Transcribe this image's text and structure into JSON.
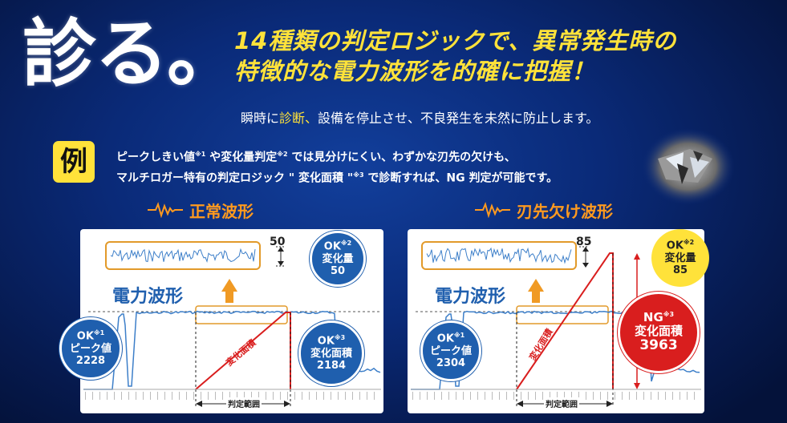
{
  "hero": {
    "title": "診る。"
  },
  "headline": {
    "line1": "14種類の判定ロジックで、異常発生時の",
    "line2": "特徴的な電力波形を的確に把握！"
  },
  "subline": {
    "pre": "瞬時に",
    "highlight": "診断、",
    "post": "設備を停止させ、不良発生を未然に防止します。"
  },
  "example": {
    "badge": "例",
    "line1_a": "ピークしきい値",
    "sup1": "※1",
    "line1_b": " や変化量判定",
    "sup2": "※2",
    "line1_c": " では見分けにくい、わずかな刃先の欠けも、",
    "line2_a": "マルチロガー特有の判定ロジック \" 変化面積 \"",
    "sup3": "※3",
    "line2_b": " で診断すれば、NG 判定が可能です。"
  },
  "normal": {
    "title": "正常波形",
    "zoom_value": "50",
    "waveform_label": "電力波形",
    "area_label": "変化面積",
    "range_label": "判定範囲",
    "ok1": {
      "status": "OK",
      "sup": "※1",
      "label": "ピーク値",
      "value": "2228"
    },
    "ok2": {
      "status": "OK",
      "sup": "※2",
      "label": "変化量",
      "value": "50"
    },
    "ok3": {
      "status": "OK",
      "sup": "※3",
      "label": "変化面積",
      "value": "2184"
    }
  },
  "chipped": {
    "title": "刃先欠け波形",
    "zoom_value": "85",
    "waveform_label": "電力波形",
    "area_label": "変化面積",
    "range_label": "判定範囲",
    "ok1": {
      "status": "OK",
      "sup": "※1",
      "label": "ピーク値",
      "value": "2304"
    },
    "ok2": {
      "status": "OK",
      "sup": "※2",
      "label": "変化量",
      "value": "85"
    },
    "ng3": {
      "status": "NG",
      "sup": "※3",
      "label": "変化面積",
      "value": "3963"
    }
  },
  "colors": {
    "yellow": "#ffe23a",
    "orange": "#ff9a1f",
    "red": "#d91e1e",
    "blue": "#1f5fae",
    "wave": "#3d7fc9"
  }
}
